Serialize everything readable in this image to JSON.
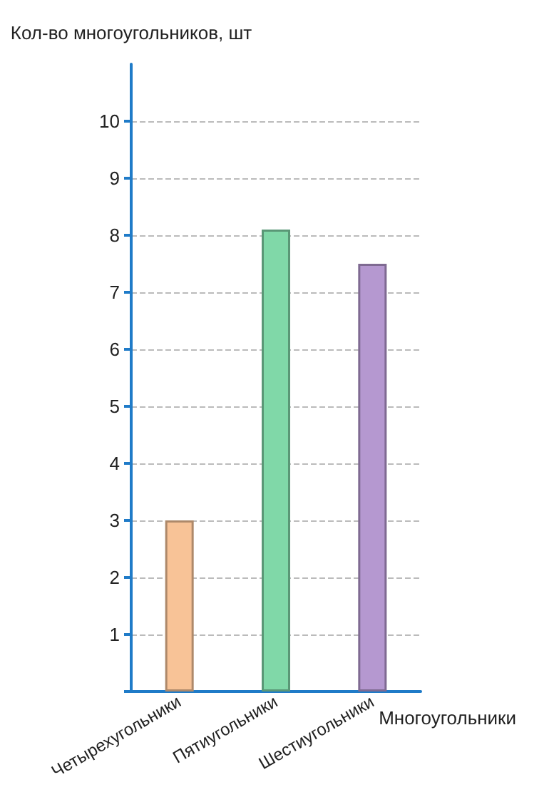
{
  "chart_data": {
    "type": "bar",
    "ylabel": "Кол-во многоугольников, шт",
    "xlabel": "Многоугольники",
    "categories": [
      "Четырехугольники",
      "Пятиугольники",
      "Шестиугольники"
    ],
    "values": [
      3,
      8.1,
      7.5
    ],
    "colors": [
      "#f8c397",
      "#80d8a8",
      "#b598d0"
    ],
    "ylim": [
      0,
      11
    ],
    "yticks": [
      {
        "value": 0,
        "label": null
      },
      1,
      2,
      3,
      4,
      5,
      6,
      7,
      8,
      9,
      10
    ],
    "grid": true
  }
}
